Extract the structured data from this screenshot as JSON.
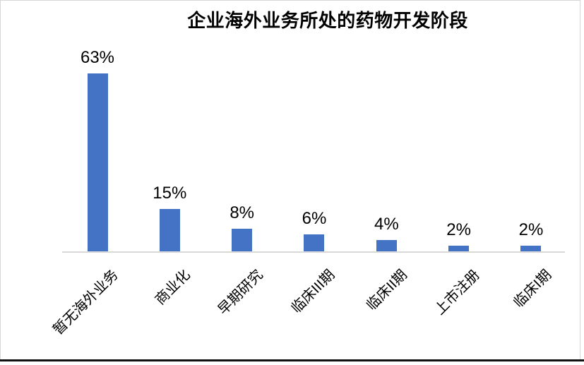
{
  "chart_data": {
    "type": "bar",
    "title": "企业海外业务所处的药物开发阶段",
    "categories": [
      "暂无海外业务",
      "商业化",
      "早期研究",
      "临床III期",
      "临床II期",
      "上市注册",
      "临床I期"
    ],
    "values": [
      63,
      15,
      8,
      6,
      4,
      2,
      2
    ],
    "value_labels": [
      "63%",
      "15%",
      "8%",
      "6%",
      "4%",
      "2%",
      "2%"
    ],
    "xlabel": "",
    "ylabel": "",
    "ylim": [
      0,
      70
    ],
    "unit": "%",
    "grid": false,
    "legend": "none",
    "y_axis_visible": false,
    "data_label_position": "above-bar",
    "category_label_rotation_deg": 45,
    "bar_color": "#4472C4",
    "axis_line_color": "#D9D9D9"
  },
  "colors": {
    "background": "#FFFFFF",
    "frame_border": "#D6D6D6",
    "bottom_rule": "#111111",
    "text": "#000000"
  }
}
